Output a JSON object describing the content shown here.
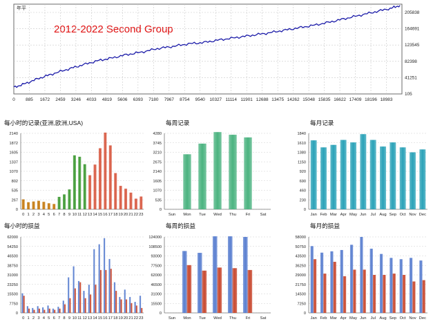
{
  "colors": {
    "main_line": "#1a1aa8",
    "red_title": "#e01010",
    "hour_orange": "#c57a10",
    "hour_green": "#3f9a34",
    "hour_red": "#d85a42",
    "week_green": "#4bb380",
    "month_teal": "#2aa2b8",
    "profit_blue": "#5a7fd0",
    "loss_red": "#c8482f"
  },
  "main_chart": {
    "corner_label": "年平",
    "overlay_title": "2012-2022 Second Group"
  },
  "chart_data": [
    {
      "type": "line",
      "title": "2012-2022 Second Group",
      "x_ticks": [
        "0",
        "885",
        "1672",
        "2459",
        "3246",
        "4033",
        "4819",
        "5606",
        "6393",
        "7180",
        "7967",
        "8754",
        "9540",
        "10327",
        "11114",
        "11901",
        "12688",
        "13475",
        "14262",
        "15048",
        "15835",
        "16622",
        "17409",
        "18196",
        "18983"
      ],
      "y_ticks": [
        "205838",
        "164691",
        "123545",
        "82398",
        "41251",
        "105"
      ],
      "xlim": [
        0,
        20000
      ],
      "ylim": [
        105,
        205838
      ],
      "x": [
        0,
        600,
        1300,
        2000,
        2800,
        3500,
        4300,
        5000,
        5800,
        6600,
        7400,
        8200,
        9000,
        9800,
        10600,
        11400,
        12200,
        13000,
        13800,
        14600,
        15400,
        16200,
        17000,
        17800,
        18600,
        19400,
        19900
      ],
      "values": [
        15000,
        24000,
        36000,
        46000,
        57000,
        66000,
        76000,
        82000,
        90000,
        96000,
        104000,
        109000,
        115000,
        118000,
        124000,
        129000,
        134000,
        139000,
        145000,
        151000,
        157000,
        164000,
        172000,
        180000,
        188000,
        196000,
        203000
      ]
    },
    {
      "type": "bar",
      "title": "每小时的记录(亚洲,欧洲,USA)",
      "categories": [
        "0",
        "1",
        "2",
        "3",
        "4",
        "5",
        "6",
        "7",
        "8",
        "9",
        "10",
        "11",
        "12",
        "13",
        "14",
        "15",
        "16",
        "17",
        "18",
        "19",
        "20",
        "21",
        "22",
        "23"
      ],
      "y_ticks": [
        "2140",
        "1872",
        "1605",
        "1337",
        "1070",
        "802",
        "535",
        "267",
        "0"
      ],
      "ylim": [
        0,
        2140
      ],
      "values": [
        280,
        200,
        220,
        240,
        210,
        170,
        150,
        350,
        420,
        560,
        1520,
        1480,
        1270,
        960,
        1260,
        1720,
        2160,
        1800,
        1020,
        660,
        580,
        470,
        300,
        360
      ]
    },
    {
      "type": "bar",
      "title": "每周记录",
      "categories": [
        "Sun",
        "Mon",
        "Tue",
        "Wed",
        "Thu",
        "Fri",
        "Sat"
      ],
      "y_ticks": [
        "4280",
        "3745",
        "3210",
        "2675",
        "2140",
        "1605",
        "1070",
        "535",
        "0"
      ],
      "ylim": [
        0,
        4280
      ],
      "values": [
        0,
        3100,
        3700,
        4350,
        4200,
        4050,
        0
      ]
    },
    {
      "type": "bar",
      "title": "每月记录",
      "categories": [
        "Jan",
        "Feb",
        "Mar",
        "Apr",
        "May",
        "Jun",
        "Jul",
        "Aug",
        "Sep",
        "Oct",
        "Nov",
        "Dec"
      ],
      "y_ticks": [
        "1840",
        "1610",
        "1380",
        "1150",
        "920",
        "690",
        "460",
        "230",
        "0"
      ],
      "ylim": [
        0,
        1840
      ],
      "values": [
        1670,
        1500,
        1560,
        1680,
        1620,
        1820,
        1680,
        1520,
        1620,
        1500,
        1380,
        1450
      ]
    },
    {
      "type": "bar",
      "title": "每小时的损益",
      "categories": [
        "0",
        "1",
        "2",
        "3",
        "4",
        "5",
        "6",
        "7",
        "8",
        "9",
        "10",
        "11",
        "12",
        "13",
        "14",
        "15",
        "16",
        "17",
        "18",
        "19",
        "20",
        "21",
        "22",
        "23"
      ],
      "y_ticks": [
        "62000",
        "54250",
        "46500",
        "38750",
        "31000",
        "23250",
        "15500",
        "7750",
        "0"
      ],
      "ylim": [
        0,
        62000
      ],
      "series": [
        {
          "values": [
            16000,
            5500,
            4000,
            5500,
            4500,
            6000,
            3500,
            5000,
            10000,
            29000,
            38000,
            26000,
            18000,
            23000,
            52000,
            56000,
            61000,
            44000,
            25000,
            13000,
            19000,
            13000,
            9000,
            14000
          ]
        },
        {
          "values": [
            14000,
            3500,
            2500,
            3500,
            2500,
            3500,
            2500,
            3500,
            7000,
            12000,
            20000,
            25000,
            12000,
            15000,
            23000,
            35000,
            35000,
            36000,
            18000,
            11000,
            11000,
            8000,
            6000,
            4000
          ]
        }
      ]
    },
    {
      "type": "bar",
      "title": "每周的损益",
      "categories": [
        "Sun",
        "Mon",
        "Tue",
        "Wed",
        "Thu",
        "Fri",
        "Sat"
      ],
      "y_ticks": [
        "124000",
        "108500",
        "93000",
        "77500",
        "62000",
        "46500",
        "31000",
        "15500",
        "0"
      ],
      "ylim": [
        0,
        124000
      ],
      "series": [
        {
          "values": [
            0,
            101000,
            98000,
            125000,
            125000,
            124000,
            0
          ]
        },
        {
          "values": [
            0,
            78000,
            69000,
            74000,
            73000,
            70000,
            0
          ]
        }
      ]
    },
    {
      "type": "bar",
      "title": "每月的损益",
      "categories": [
        "Jan",
        "Feb",
        "Mar",
        "Apr",
        "May",
        "Jun",
        "Jul",
        "Aug",
        "Sep",
        "Oct",
        "Nov",
        "Dec"
      ],
      "y_ticks": [
        "58000",
        "50750",
        "43500",
        "36250",
        "29000",
        "21750",
        "14500",
        "7250",
        "0"
      ],
      "ylim": [
        0,
        58000
      ],
      "series": [
        {
          "values": [
            51000,
            46000,
            47000,
            48000,
            52000,
            58000,
            49000,
            45000,
            42000,
            41000,
            42000,
            40000
          ]
        },
        {
          "values": [
            41000,
            30000,
            39000,
            28000,
            33000,
            33000,
            29000,
            29000,
            30000,
            29000,
            24000,
            25000
          ]
        }
      ]
    }
  ]
}
